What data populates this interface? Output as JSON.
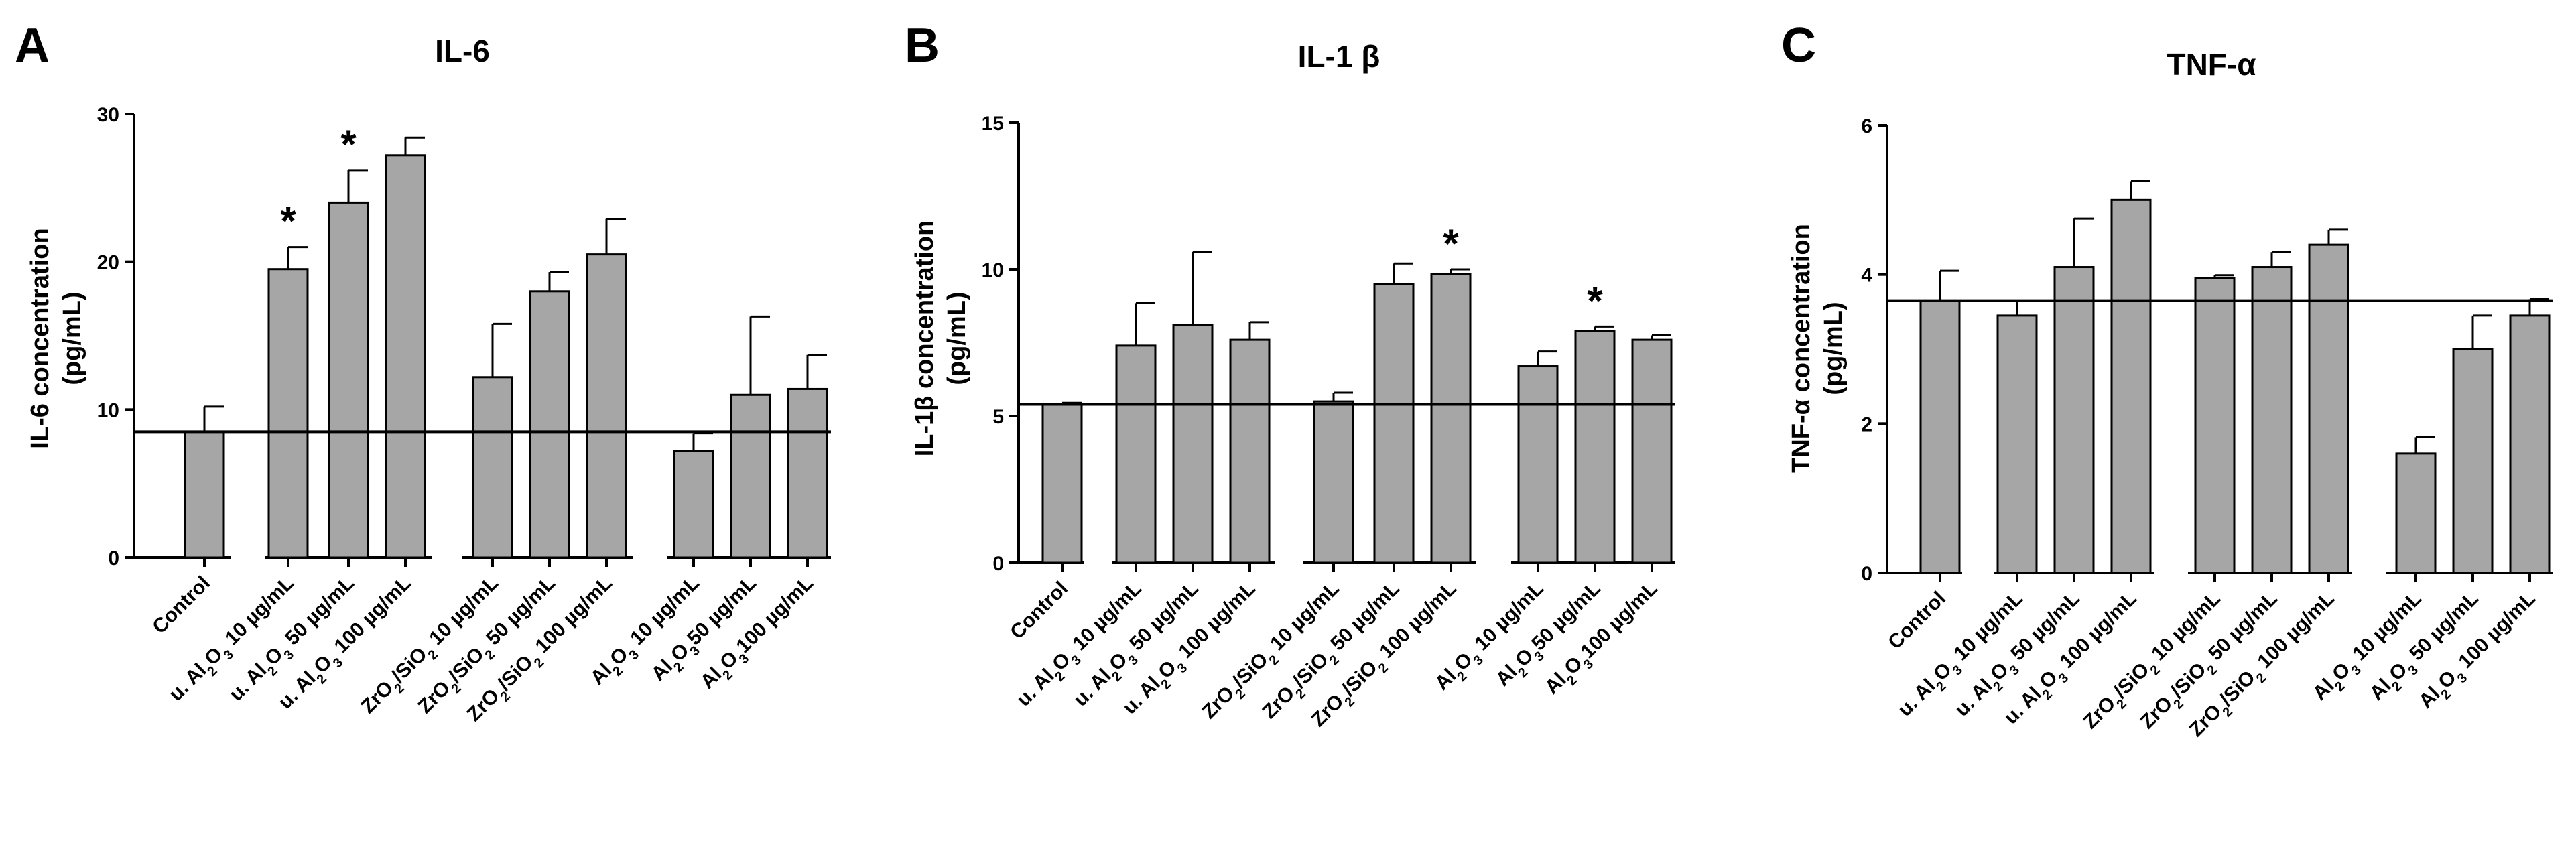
{
  "chart_data": [
    {
      "type": "bar",
      "panel": "A",
      "title": "IL-6",
      "ylabel_lines": [
        "IL-6 concentration",
        "(pg/mL)"
      ],
      "ylim": [
        0,
        30
      ],
      "yticks": [
        0,
        10,
        20,
        30
      ],
      "categories": [
        {
          "prefix": "Control",
          "sub": "",
          "suffix": ""
        },
        {
          "prefix": "u. Al",
          "sub": "2",
          "mid": "O",
          "sub2": "3",
          "suffix": " 10 µg/mL"
        },
        {
          "prefix": "u. Al",
          "sub": "2",
          "mid": "O",
          "sub2": "3",
          "suffix": " 50 µg/mL"
        },
        {
          "prefix": "u. Al",
          "sub": "2",
          "mid": "O",
          "sub2": "3",
          "suffix": " 100 µg/mL"
        },
        {
          "prefix": "ZrO",
          "sub": "2",
          "mid": "/SiO",
          "sub2": "2",
          "suffix": " 10 µg/mL"
        },
        {
          "prefix": "ZrO",
          "sub": "2",
          "mid": "/SiO",
          "sub2": "2",
          "suffix": " 50 µg/mL"
        },
        {
          "prefix": "ZrO",
          "sub": "2",
          "mid": "/SiO",
          "sub2": "2",
          "suffix": " 100 µg/mL"
        },
        {
          "prefix": "Al",
          "sub": "2",
          "mid": "O",
          "sub2": "3",
          "suffix": " 10 µg/mL"
        },
        {
          "prefix": "Al",
          "sub": "2",
          "mid": "O",
          "sub2": "3",
          "suffix": "50 µg/mL"
        },
        {
          "prefix": "Al",
          "sub": "2",
          "mid": "O",
          "sub2": "3",
          "suffix": "100 µg/mL"
        }
      ],
      "values": [
        8.5,
        19.5,
        24.0,
        27.2,
        12.2,
        18.0,
        20.5,
        7.2,
        11.0,
        11.4
      ],
      "errors": [
        1.7,
        1.5,
        2.2,
        1.2,
        3.6,
        1.3,
        2.4,
        1.2,
        5.3,
        2.3
      ],
      "significant": [
        false,
        true,
        true,
        false,
        false,
        false,
        false,
        false,
        false,
        false
      ],
      "star_symbol": "*",
      "reference_line": 8.5,
      "bar_color": "#a6a6a6",
      "grid": false
    },
    {
      "type": "bar",
      "panel": "B",
      "title": "IL-1 β",
      "ylabel_lines": [
        "IL-1β concentration",
        "(pg/mL)"
      ],
      "ylim": [
        0,
        15
      ],
      "yticks": [
        0,
        5,
        10,
        15
      ],
      "categories": [
        {
          "prefix": "Control",
          "sub": "",
          "suffix": ""
        },
        {
          "prefix": "u. Al",
          "sub": "2",
          "mid": "O",
          "sub2": "3",
          "suffix": " 10 µg/mL"
        },
        {
          "prefix": "u. Al",
          "sub": "2",
          "mid": "O",
          "sub2": "3",
          "suffix": " 50 µg/mL"
        },
        {
          "prefix": "u. Al",
          "sub": "2",
          "mid": "O",
          "sub2": "3",
          "suffix": " 100 µg/mL"
        },
        {
          "prefix": "ZrO",
          "sub": "2",
          "mid": "/SiO",
          "sub2": "2",
          "suffix": " 10 µg/mL"
        },
        {
          "prefix": "ZrO",
          "sub": "2",
          "mid": "/SiO",
          "sub2": "2",
          "suffix": " 50 µg/mL"
        },
        {
          "prefix": "ZrO",
          "sub": "2",
          "mid": "/SiO",
          "sub2": "2",
          "suffix": " 100 µg/mL"
        },
        {
          "prefix": "Al",
          "sub": "2",
          "mid": "O",
          "sub2": "3",
          "suffix": " 10 µg/mL"
        },
        {
          "prefix": "Al",
          "sub": "2",
          "mid": "O",
          "sub2": "3",
          "suffix": "50 µg/mL"
        },
        {
          "prefix": "Al",
          "sub": "2",
          "mid": "O",
          "sub2": "3",
          "suffix": "100 µg/mL"
        }
      ],
      "values": [
        5.4,
        7.4,
        8.1,
        7.6,
        5.5,
        9.5,
        9.85,
        6.7,
        7.9,
        7.6
      ],
      "errors": [
        0.05,
        1.45,
        2.5,
        0.6,
        0.3,
        0.7,
        0.15,
        0.5,
        0.15,
        0.15
      ],
      "significant": [
        false,
        false,
        false,
        false,
        false,
        false,
        true,
        false,
        true,
        false
      ],
      "star_symbol": "*",
      "reference_line": 5.4,
      "bar_color": "#a6a6a6",
      "grid": false
    },
    {
      "type": "bar",
      "panel": "C",
      "title": "TNF-α",
      "ylabel_lines": [
        "TNF-α concentration",
        "(pg/mL)"
      ],
      "ylim": [
        0,
        6
      ],
      "yticks": [
        0,
        2,
        4,
        6
      ],
      "categories": [
        {
          "prefix": "Control",
          "sub": "",
          "suffix": ""
        },
        {
          "prefix": "u. Al",
          "sub": "2",
          "mid": "O",
          "sub2": "3",
          "suffix": " 10 µg/mL"
        },
        {
          "prefix": "u. Al",
          "sub": "2",
          "mid": "O",
          "sub2": "3",
          "suffix": " 50 µg/mL"
        },
        {
          "prefix": "u. Al",
          "sub": "2",
          "mid": "O",
          "sub2": "3",
          "suffix": " 100 µg/mL"
        },
        {
          "prefix": "ZrO",
          "sub": "2",
          "mid": "/SiO",
          "sub2": "2",
          "suffix": " 10 µg/mL"
        },
        {
          "prefix": "ZrO",
          "sub": "2",
          "mid": "/SiO",
          "sub2": "2",
          "suffix": " 50 µg/mL"
        },
        {
          "prefix": "ZrO",
          "sub": "2",
          "mid": "/SiO",
          "sub2": "2",
          "suffix": " 100 µg/mL"
        },
        {
          "prefix": "Al",
          "sub": "2",
          "mid": "O",
          "sub2": "3",
          "suffix": " 10 µg/mL"
        },
        {
          "prefix": "Al",
          "sub": "2",
          "mid": "O",
          "sub2": "3",
          "suffix": " 50 µg/mL"
        },
        {
          "prefix": "Al",
          "sub": "2",
          "mid": "O",
          "sub2": "3",
          "suffix": " 100 µg/mL"
        }
      ],
      "values": [
        3.65,
        3.45,
        4.1,
        5.0,
        3.95,
        4.1,
        4.4,
        1.6,
        3.0,
        3.45
      ],
      "errors": [
        0.4,
        0.2,
        0.65,
        0.25,
        0.04,
        0.2,
        0.2,
        0.22,
        0.45,
        0.22
      ],
      "significant": [
        false,
        false,
        false,
        false,
        false,
        false,
        false,
        false,
        false,
        false
      ],
      "star_symbol": "*",
      "reference_line": 3.65,
      "bar_color": "#a6a6a6",
      "grid": false
    }
  ]
}
